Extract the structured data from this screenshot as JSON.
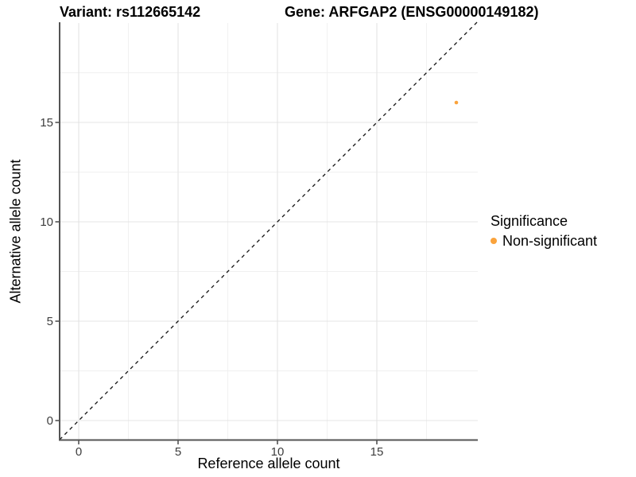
{
  "figure": {
    "title_variant": "Variant: rs112665142",
    "title_gene": "Gene: ARFGAP2 (ENSG00000149182)"
  },
  "chart_data": {
    "type": "scatter",
    "title": "Variant: rs112665142   Gene: ARFGAP2 (ENSG00000149182)",
    "xlabel": "Reference allele count",
    "ylabel": "Alternative allele count",
    "xlim": [
      -0.96,
      20.04
    ],
    "ylim": [
      -0.96,
      20.04
    ],
    "x_ticks": [
      0,
      5,
      10,
      15
    ],
    "y_ticks": [
      0,
      5,
      10,
      15
    ],
    "x_minor_ticks": [
      2.5,
      7.5,
      12.5,
      17.5
    ],
    "y_minor_ticks": [
      2.5,
      7.5,
      12.5,
      17.5
    ],
    "grid": "major+minor",
    "identity_line": {
      "style": "dashed",
      "equation": "y = x",
      "from": [
        -0.96,
        -0.96
      ],
      "to": [
        20.04,
        20.04
      ],
      "color": "#111111"
    },
    "series": [
      {
        "name": "Non-significant",
        "color": "#FAA33C",
        "points": [
          [
            19,
            16
          ]
        ]
      }
    ],
    "legend": {
      "position": "right",
      "title": "Significance",
      "items": [
        {
          "label": "Non-significant",
          "color": "#FAA33C"
        }
      ]
    }
  }
}
